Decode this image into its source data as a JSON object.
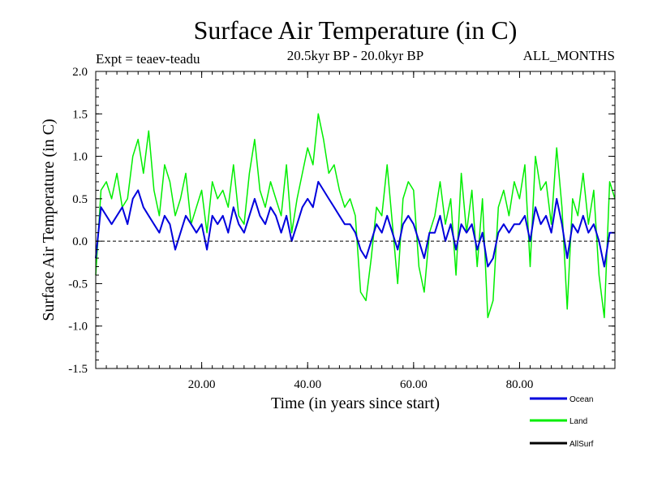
{
  "chart_data": {
    "type": "line",
    "title": "Surface Air Temperature (in C)",
    "subtitle": "20.5kyr BP - 20.0kyr BP",
    "experiment_label": "Expt = teaev-teadu",
    "months_label": "ALL_MONTHS",
    "xlabel": "Time (in years since start)",
    "ylabel": "Surface Air Temperature (in C)",
    "xlim": [
      0,
      98
    ],
    "ylim": [
      -1.5,
      2.0
    ],
    "xticks": [
      "20.00",
      "40.00",
      "60.00",
      "80.00"
    ],
    "yticks": [
      "-1.5",
      "-1.0",
      "-0.5",
      "0.0",
      "0.5",
      "1.0",
      "1.5",
      "2.0"
    ],
    "reference_line": 0.0,
    "legend": [
      "Ocean",
      "Land",
      "AllSurf"
    ],
    "series": [
      {
        "name": "Land",
        "color": "#00ee00",
        "x": [
          0,
          1,
          2,
          3,
          4,
          5,
          6,
          7,
          8,
          9,
          10,
          11,
          12,
          13,
          14,
          15,
          16,
          17,
          18,
          19,
          20,
          21,
          22,
          23,
          24,
          25,
          26,
          27,
          28,
          29,
          30,
          31,
          32,
          33,
          34,
          35,
          36,
          37,
          38,
          39,
          40,
          41,
          42,
          43,
          44,
          45,
          46,
          47,
          48,
          49,
          50,
          51,
          52,
          53,
          54,
          55,
          56,
          57,
          58,
          59,
          60,
          61,
          62,
          63,
          64,
          65,
          66,
          67,
          68,
          69,
          70,
          71,
          72,
          73,
          74,
          75,
          76,
          77,
          78,
          79,
          80,
          81,
          82,
          83,
          84,
          85,
          86,
          87,
          88,
          89,
          90,
          91,
          92,
          93,
          94,
          95,
          96,
          97,
          98
        ],
        "values": [
          -0.4,
          0.6,
          0.7,
          0.5,
          0.8,
          0.4,
          0.5,
          1.0,
          1.2,
          0.8,
          1.3,
          0.6,
          0.3,
          0.9,
          0.7,
          0.3,
          0.5,
          0.8,
          0.2,
          0.4,
          0.6,
          0.1,
          0.7,
          0.5,
          0.6,
          0.4,
          0.9,
          0.3,
          0.2,
          0.8,
          1.2,
          0.6,
          0.4,
          0.7,
          0.5,
          0.3,
          0.9,
          0.1,
          0.5,
          0.8,
          1.1,
          0.9,
          1.5,
          1.2,
          0.8,
          0.9,
          0.6,
          0.4,
          0.5,
          0.3,
          -0.6,
          -0.7,
          -0.2,
          0.4,
          0.3,
          0.9,
          0.2,
          -0.5,
          0.5,
          0.7,
          0.6,
          -0.3,
          -0.6,
          0.1,
          0.3,
          0.7,
          0.2,
          0.5,
          -0.4,
          0.8,
          0.1,
          0.6,
          -0.3,
          0.5,
          -0.9,
          -0.7,
          0.4,
          0.6,
          0.3,
          0.7,
          0.5,
          0.9,
          -0.3,
          1.0,
          0.6,
          0.7,
          0.2,
          1.1,
          0.4,
          -0.8,
          0.5,
          0.3,
          0.8,
          0.2,
          0.6,
          -0.4,
          -0.9,
          0.7,
          0.5
        ]
      },
      {
        "name": "Ocean",
        "color": "#0000dd",
        "x": [
          0,
          1,
          2,
          3,
          4,
          5,
          6,
          7,
          8,
          9,
          10,
          11,
          12,
          13,
          14,
          15,
          16,
          17,
          18,
          19,
          20,
          21,
          22,
          23,
          24,
          25,
          26,
          27,
          28,
          29,
          30,
          31,
          32,
          33,
          34,
          35,
          36,
          37,
          38,
          39,
          40,
          41,
          42,
          43,
          44,
          45,
          46,
          47,
          48,
          49,
          50,
          51,
          52,
          53,
          54,
          55,
          56,
          57,
          58,
          59,
          60,
          61,
          62,
          63,
          64,
          65,
          66,
          67,
          68,
          69,
          70,
          71,
          72,
          73,
          74,
          75,
          76,
          77,
          78,
          79,
          80,
          81,
          82,
          83,
          84,
          85,
          86,
          87,
          88,
          89,
          90,
          91,
          92,
          93,
          94,
          95,
          96,
          97,
          98
        ],
        "values": [
          -0.2,
          0.4,
          0.3,
          0.2,
          0.3,
          0.4,
          0.2,
          0.5,
          0.6,
          0.4,
          0.3,
          0.2,
          0.1,
          0.3,
          0.2,
          -0.1,
          0.1,
          0.3,
          0.2,
          0.1,
          0.2,
          -0.1,
          0.3,
          0.2,
          0.3,
          0.1,
          0.4,
          0.2,
          0.1,
          0.3,
          0.5,
          0.3,
          0.2,
          0.4,
          0.3,
          0.1,
          0.3,
          0.0,
          0.2,
          0.4,
          0.5,
          0.4,
          0.7,
          0.6,
          0.5,
          0.4,
          0.3,
          0.2,
          0.2,
          0.1,
          -0.1,
          -0.2,
          0.0,
          0.2,
          0.1,
          0.3,
          0.1,
          -0.1,
          0.2,
          0.3,
          0.2,
          0.0,
          -0.2,
          0.1,
          0.1,
          0.3,
          0.0,
          0.2,
          -0.1,
          0.2,
          0.1,
          0.2,
          -0.1,
          0.1,
          -0.3,
          -0.2,
          0.1,
          0.2,
          0.1,
          0.2,
          0.2,
          0.3,
          0.0,
          0.4,
          0.2,
          0.3,
          0.1,
          0.5,
          0.2,
          -0.2,
          0.2,
          0.1,
          0.3,
          0.1,
          0.2,
          0.0,
          -0.3,
          0.1,
          0.1
        ]
      },
      {
        "name": "AllSurf",
        "color": "#000000",
        "x": [],
        "values": []
      }
    ]
  }
}
